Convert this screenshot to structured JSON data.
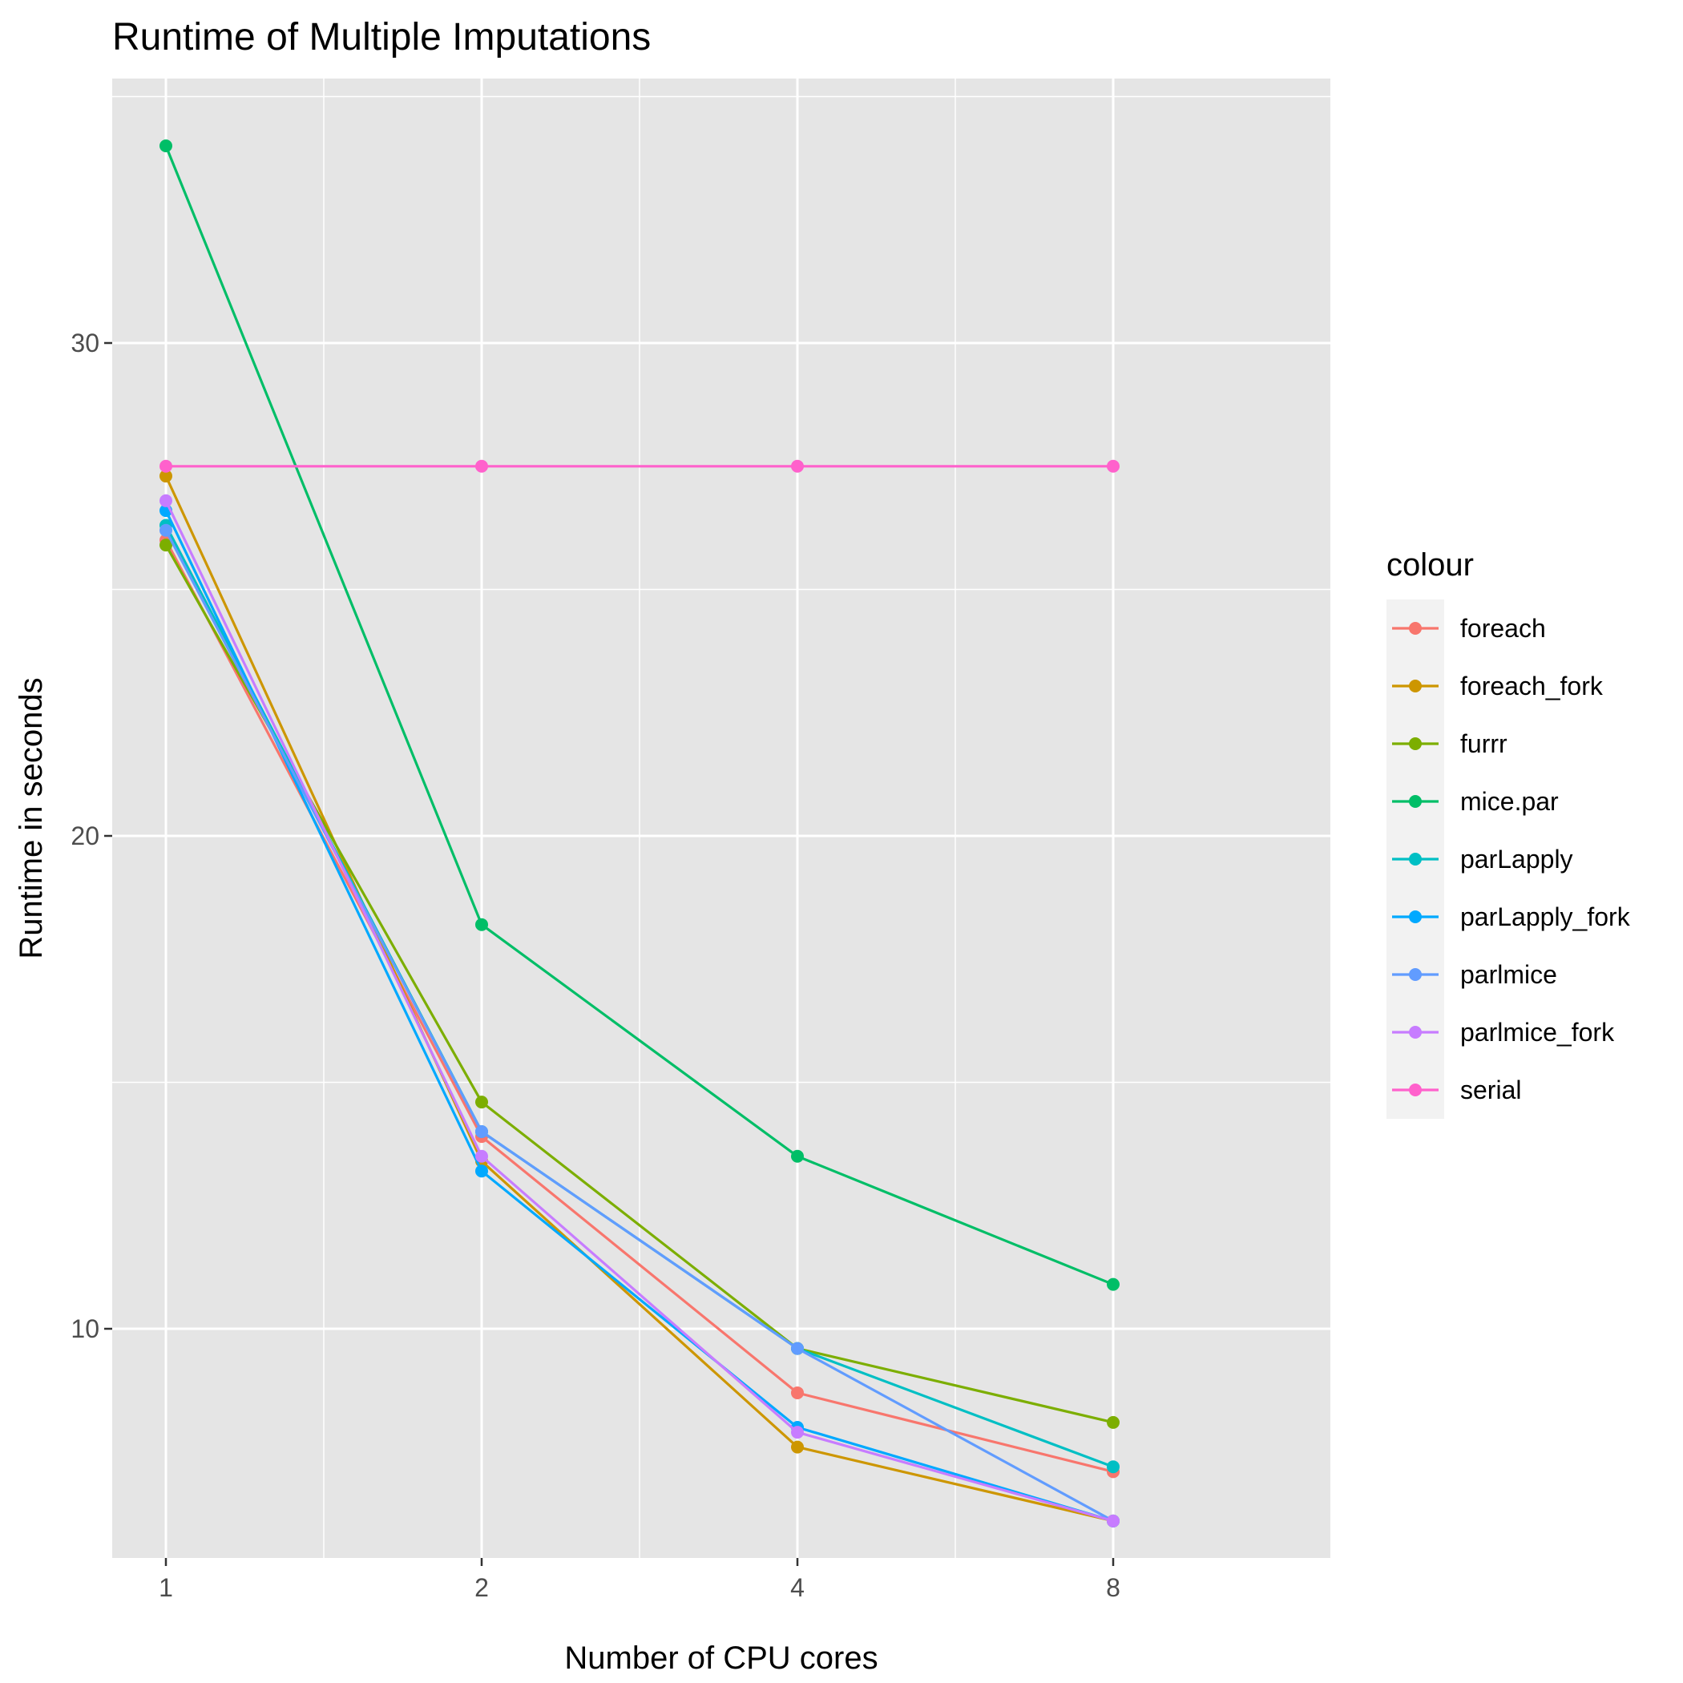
{
  "chart_data": {
    "type": "line",
    "title": "Runtime of Multiple Imputations",
    "xlabel": "Number of CPU cores",
    "ylabel": "Runtime in seconds",
    "x_scale": "log2",
    "x": [
      1,
      2,
      4,
      8
    ],
    "x_ticks": [
      1,
      2,
      4,
      8
    ],
    "y_ticks": [
      10,
      20,
      30
    ],
    "grid": true,
    "legend_title": "colour",
    "legend_position": "right",
    "series": [
      {
        "name": "foreach",
        "color": "#F8766D",
        "values": [
          26.0,
          13.9,
          8.7,
          7.1
        ]
      },
      {
        "name": "foreach_fork",
        "color": "#CD9600",
        "values": [
          27.3,
          13.4,
          7.6,
          6.1
        ]
      },
      {
        "name": "furrr",
        "color": "#7CAE00",
        "values": [
          25.9,
          14.6,
          9.6,
          8.1
        ]
      },
      {
        "name": "mice.par",
        "color": "#00BE67",
        "values": [
          34.0,
          18.2,
          13.5,
          10.9
        ]
      },
      {
        "name": "parLapply",
        "color": "#00BFC4",
        "values": [
          26.3,
          14.0,
          9.6,
          7.2
        ]
      },
      {
        "name": "parLapply_fork",
        "color": "#00A9FF",
        "values": [
          26.6,
          13.2,
          8.0,
          6.1
        ]
      },
      {
        "name": "parlmice",
        "color": "#619CFF",
        "values": [
          26.2,
          14.0,
          9.6,
          6.1
        ]
      },
      {
        "name": "parlmice_fork",
        "color": "#C77CFF",
        "values": [
          26.8,
          13.5,
          7.9,
          6.1
        ]
      },
      {
        "name": "serial",
        "color": "#FF61CC",
        "values": [
          27.5,
          27.5,
          27.5,
          27.5
        ]
      }
    ]
  }
}
